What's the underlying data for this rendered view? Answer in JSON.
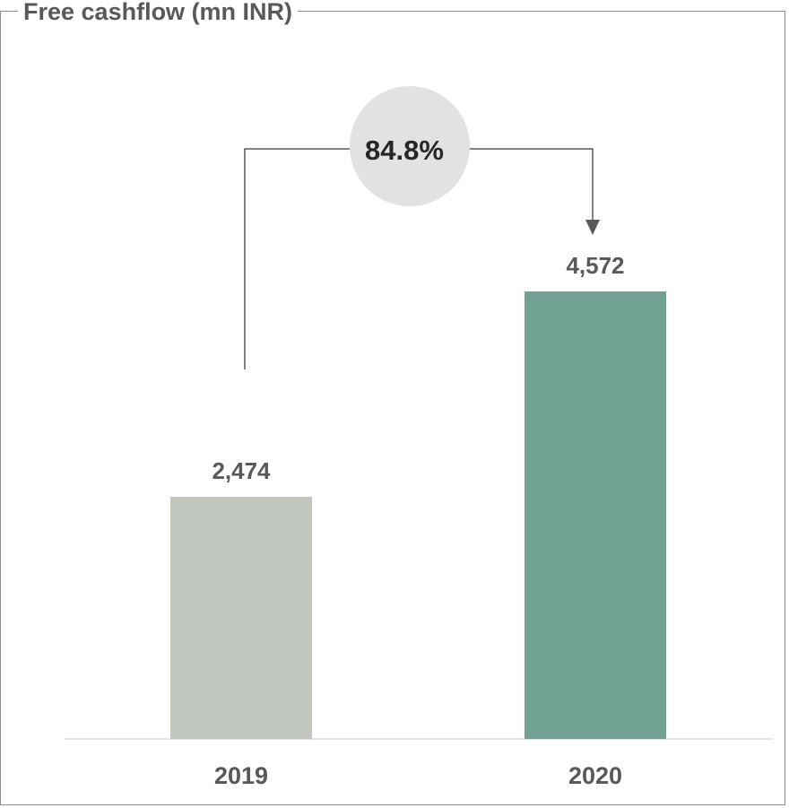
{
  "chart_data": {
    "type": "bar",
    "title": "Free cashflow (mn INR)",
    "categories": [
      "2019",
      "2020"
    ],
    "values": [
      2474,
      4572
    ],
    "value_labels": [
      "2,474",
      "4,572"
    ],
    "bar_colors": [
      "#c1c6bf",
      "#72a294"
    ],
    "growth_label": "84.8%",
    "growth_from": "2019",
    "growth_to": "2020",
    "grid": false,
    "legend": "none"
  }
}
